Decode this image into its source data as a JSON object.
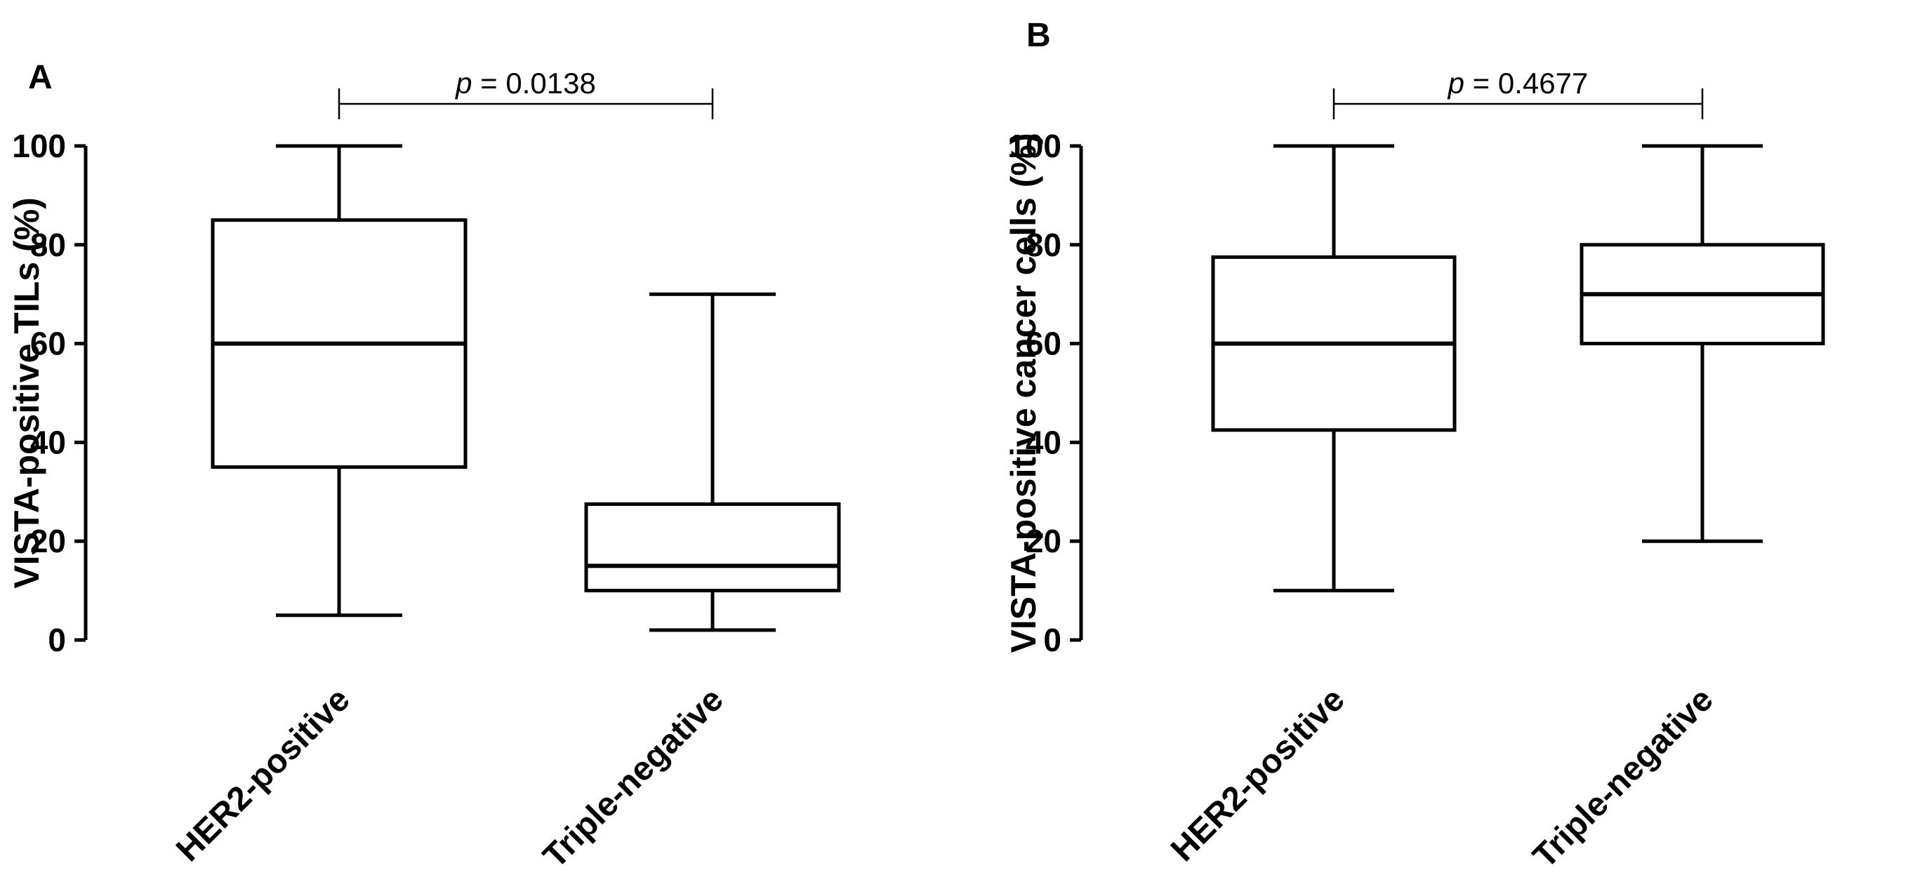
{
  "chart_data": [
    {
      "type": "box",
      "panel": "A",
      "categories": [
        "HER2-positive",
        "Triple-negative"
      ],
      "ylabel": "VISTA-positive TILs (%)",
      "xlabel": "",
      "ylim": [
        0,
        100
      ],
      "yticks": [
        "0",
        "20",
        "40",
        "60",
        "80",
        "100"
      ],
      "boxes": [
        {
          "min": 5,
          "q1": 35,
          "median": 60,
          "q3": 85,
          "max": 100
        },
        {
          "min": 2,
          "q1": 10,
          "median": 15,
          "q3": 27.5,
          "max": 70
        }
      ],
      "annotation": {
        "p_symbol": "p",
        "p_text": " = 0.0138",
        "between": [
          0,
          1
        ]
      }
    },
    {
      "type": "box",
      "panel": "B",
      "categories": [
        "HER2-positive",
        "Triple-negative"
      ],
      "ylabel": "VISTA-positive cancer cells (%)",
      "xlabel": "",
      "ylim": [
        0,
        100
      ],
      "yticks": [
        "0",
        "20",
        "40",
        "60",
        "80",
        "100"
      ],
      "boxes": [
        {
          "min": 10,
          "q1": 42.5,
          "median": 60,
          "q3": 77.5,
          "max": 100
        },
        {
          "min": 20,
          "q1": 60,
          "median": 70,
          "q3": 80,
          "max": 100
        }
      ],
      "annotation": {
        "p_symbol": "p",
        "p_text": " = 0.4677",
        "between": [
          0,
          1
        ]
      }
    }
  ]
}
